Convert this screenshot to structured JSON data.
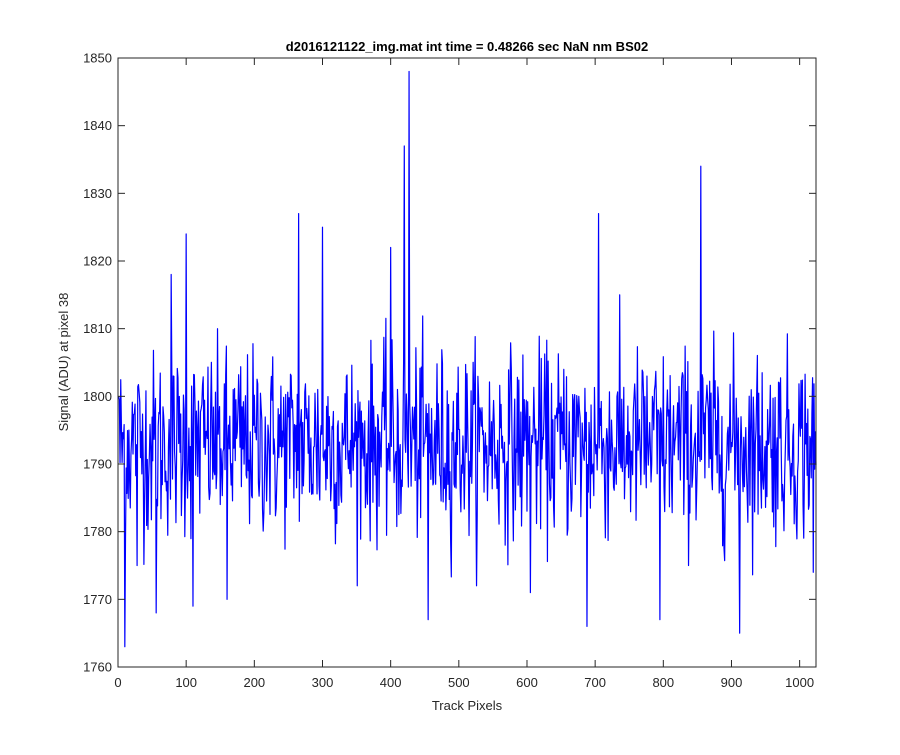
{
  "chart_data": {
    "type": "line",
    "title": "d2016121122_img.mat int time = 0.48266 sec  NaN nm BS02",
    "xlabel": "Track Pixels",
    "ylabel": "Signal (ADU) at pixel 38",
    "xlim": [
      0,
      1024
    ],
    "ylim": [
      1760,
      1850
    ],
    "xticks": [
      0,
      100,
      200,
      300,
      400,
      500,
      600,
      700,
      800,
      900,
      1000
    ],
    "yticks": [
      1760,
      1770,
      1780,
      1790,
      1800,
      1810,
      1820,
      1830,
      1840,
      1850
    ],
    "grid": false,
    "legend": "none",
    "series_color": "#0000ff",
    "series": [
      {
        "x_start": 1,
        "x_step": 1,
        "points_count": 1024,
        "baseline_mean": 1793,
        "noise_amplitude": 8,
        "notable_points": [
          {
            "x": 1,
            "y": 1800
          },
          {
            "x": 10,
            "y": 1763
          },
          {
            "x": 28,
            "y": 1775
          },
          {
            "x": 56,
            "y": 1768
          },
          {
            "x": 78,
            "y": 1818
          },
          {
            "x": 100,
            "y": 1824
          },
          {
            "x": 110,
            "y": 1769
          },
          {
            "x": 160,
            "y": 1770
          },
          {
            "x": 265,
            "y": 1827
          },
          {
            "x": 300,
            "y": 1825
          },
          {
            "x": 400,
            "y": 1822
          },
          {
            "x": 420,
            "y": 1837
          },
          {
            "x": 427,
            "y": 1848
          },
          {
            "x": 455,
            "y": 1767
          },
          {
            "x": 605,
            "y": 1771
          },
          {
            "x": 688,
            "y": 1766
          },
          {
            "x": 705,
            "y": 1827
          },
          {
            "x": 795,
            "y": 1767
          },
          {
            "x": 855,
            "y": 1834
          },
          {
            "x": 912,
            "y": 1765
          },
          {
            "x": 1020,
            "y": 1774
          }
        ]
      }
    ]
  }
}
